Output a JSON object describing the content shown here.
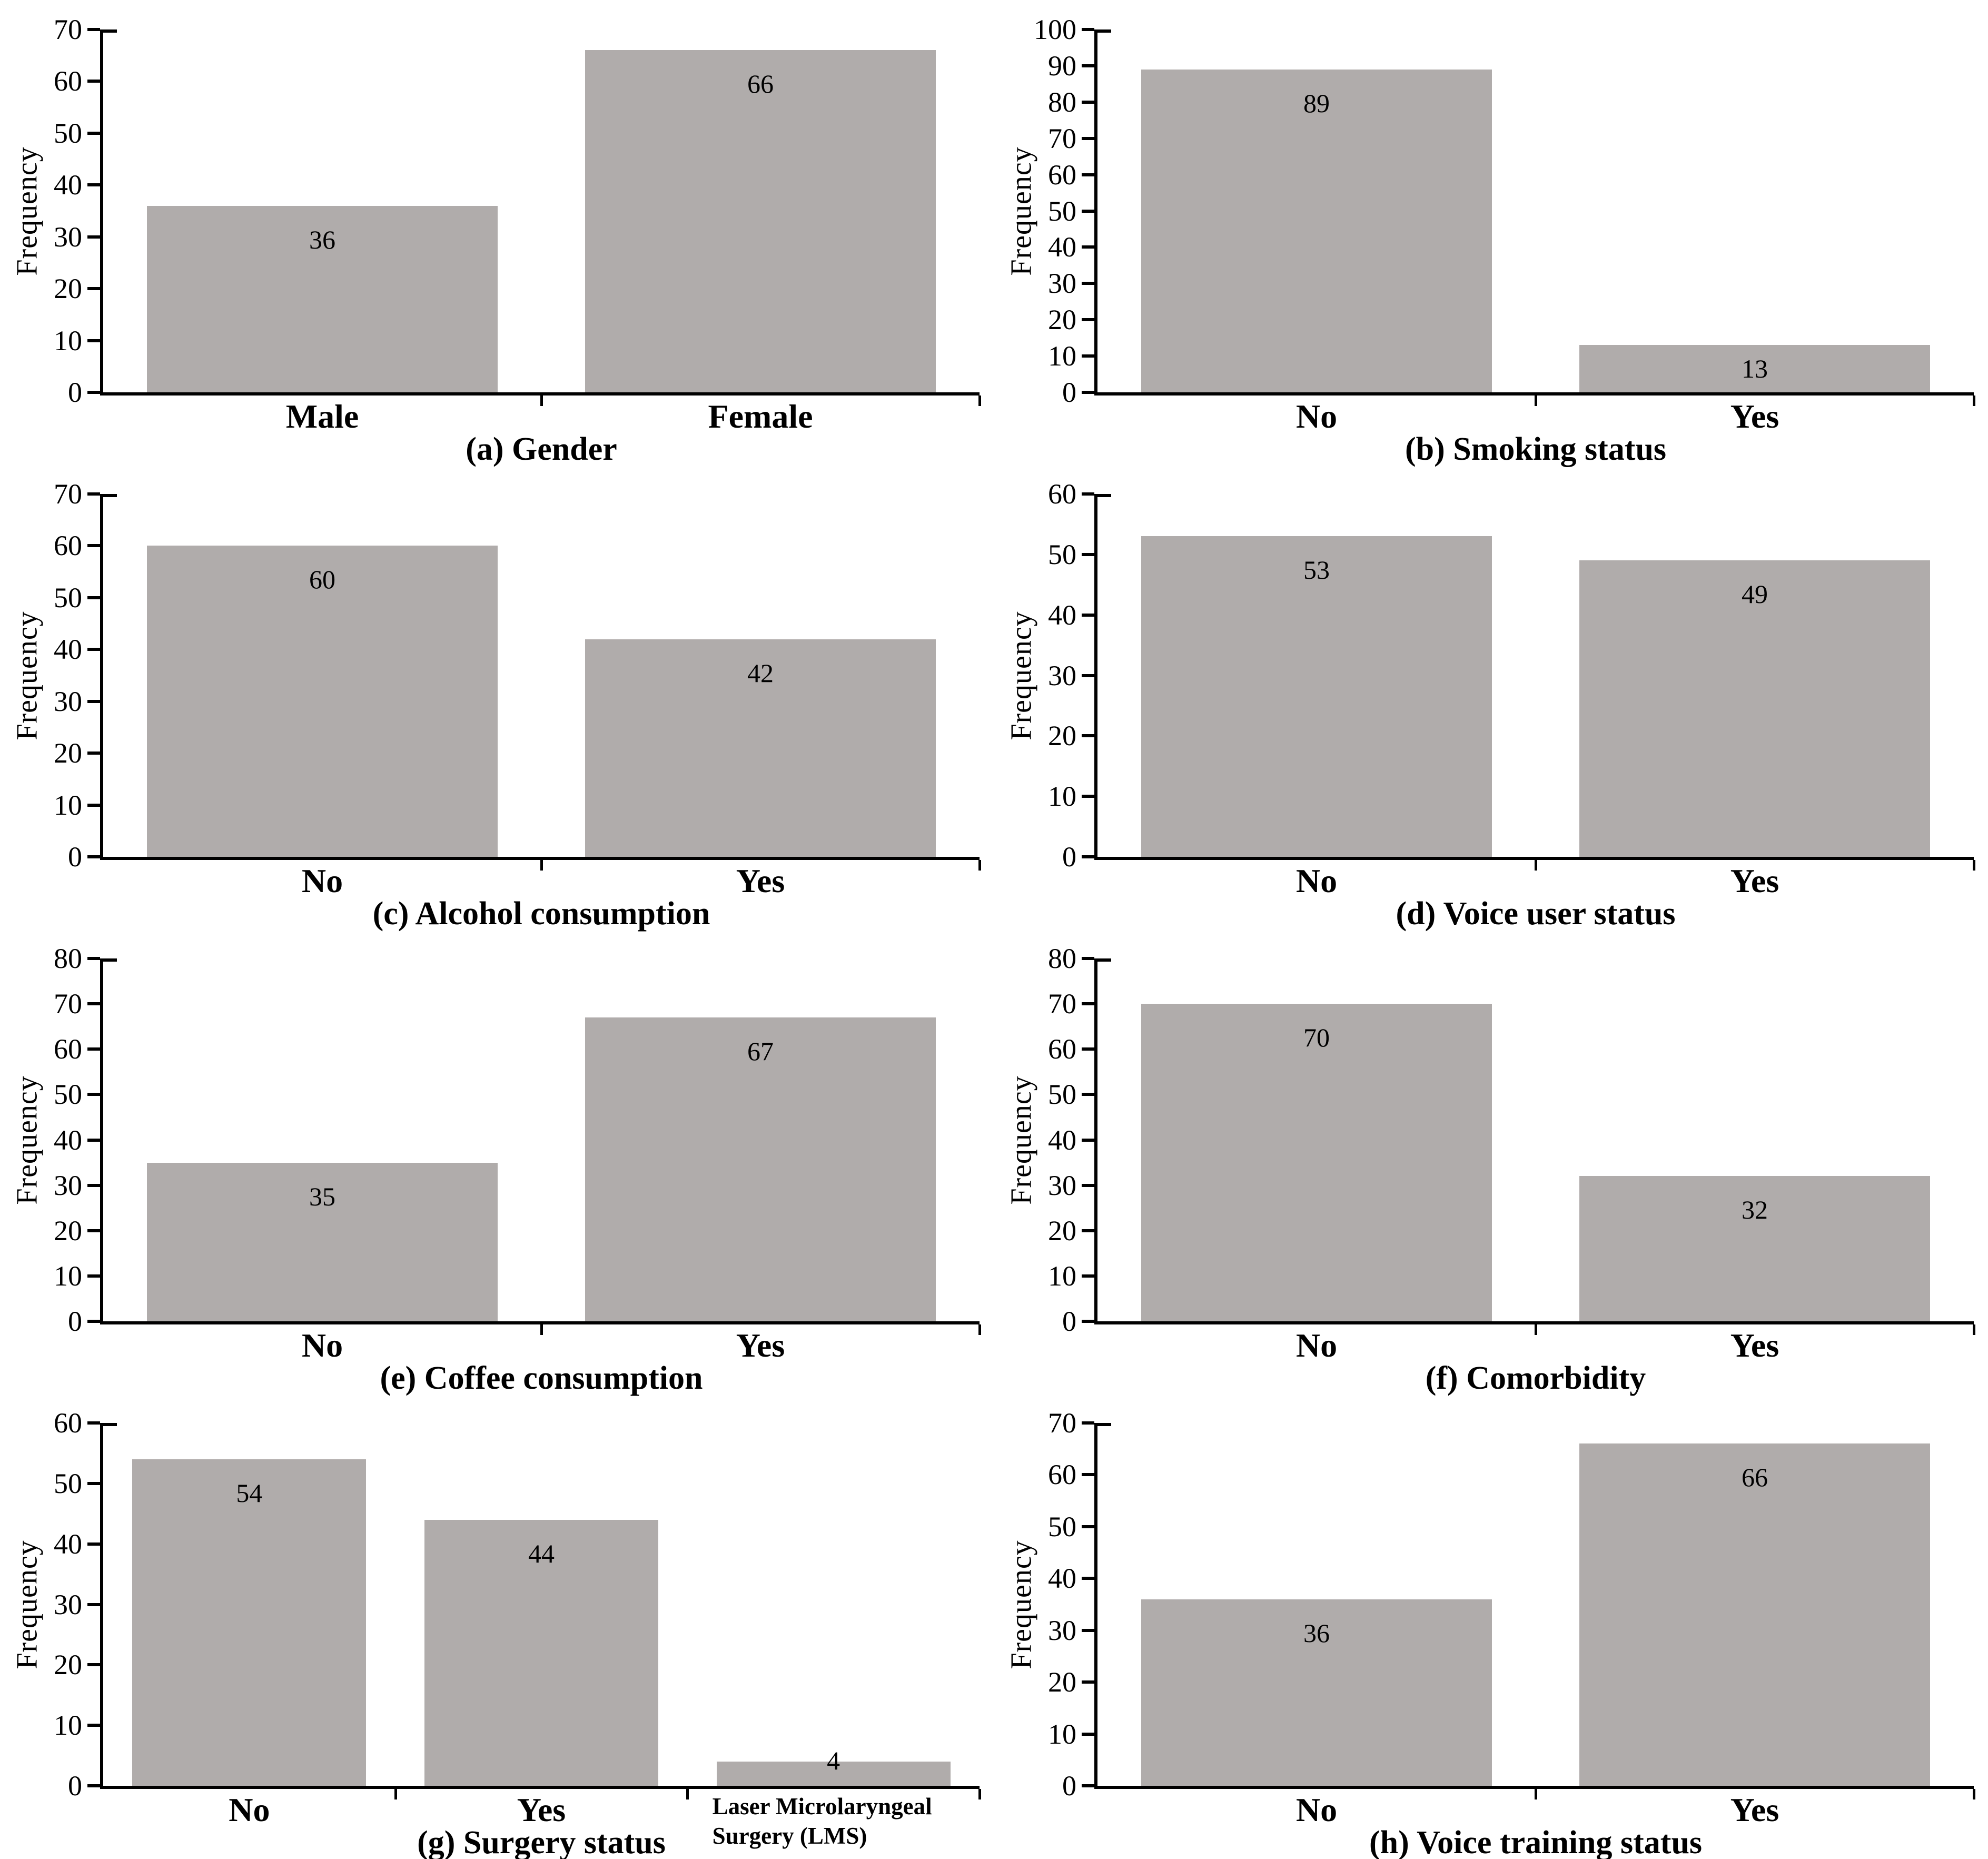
{
  "style": {
    "bar_color": "#b0acab",
    "axis_color": "#000000",
    "text_color": "#000000",
    "background": "#ffffff"
  },
  "chart_data": [
    {
      "id": "a",
      "type": "bar",
      "title": "(a) Gender",
      "ylabel": "Frequency",
      "categories": [
        "Male",
        "Female"
      ],
      "values": [
        36,
        66
      ],
      "ylim": [
        0,
        70
      ],
      "ytick_step": 10,
      "grid": false,
      "value_labels": true
    },
    {
      "id": "b",
      "type": "bar",
      "title": "(b) Smoking status",
      "ylabel": "Frequency",
      "categories": [
        "No",
        "Yes"
      ],
      "values": [
        89,
        13
      ],
      "ylim": [
        0,
        100
      ],
      "ytick_step": 10,
      "grid": false,
      "value_labels": true
    },
    {
      "id": "c",
      "type": "bar",
      "title": "(c) Alcohol consumption",
      "ylabel": "Frequency",
      "categories": [
        "No",
        "Yes"
      ],
      "values": [
        60,
        42
      ],
      "ylim": [
        0,
        70
      ],
      "ytick_step": 10,
      "grid": false,
      "value_labels": true
    },
    {
      "id": "d",
      "type": "bar",
      "title": "(d) Voice user status",
      "ylabel": "Frequency",
      "categories": [
        "No",
        "Yes"
      ],
      "values": [
        53,
        49
      ],
      "ylim": [
        0,
        60
      ],
      "ytick_step": 10,
      "grid": false,
      "value_labels": true
    },
    {
      "id": "e",
      "type": "bar",
      "title": "(e) Coffee consumption",
      "ylabel": "Frequency",
      "categories": [
        "No",
        "Yes"
      ],
      "values": [
        35,
        67
      ],
      "ylim": [
        0,
        80
      ],
      "ytick_step": 10,
      "grid": false,
      "value_labels": true
    },
    {
      "id": "f",
      "type": "bar",
      "title": "(f) Comorbidity",
      "ylabel": "Frequency",
      "categories": [
        "No",
        "Yes"
      ],
      "values": [
        70,
        32
      ],
      "ylim": [
        0,
        80
      ],
      "ytick_step": 10,
      "grid": false,
      "value_labels": true
    },
    {
      "id": "g",
      "type": "bar",
      "title": "(g) Surgery status",
      "ylabel": "Frequency",
      "categories": [
        "No",
        "Yes",
        "Laser Microlaryngeal Surgery (LMS)"
      ],
      "values": [
        54,
        44,
        4
      ],
      "ylim": [
        0,
        60
      ],
      "ytick_step": 10,
      "grid": false,
      "value_labels": true
    },
    {
      "id": "h",
      "type": "bar",
      "title": "(h) Voice training status",
      "ylabel": "Frequency",
      "categories": [
        "No",
        "Yes"
      ],
      "values": [
        36,
        66
      ],
      "ylim": [
        0,
        70
      ],
      "ytick_step": 10,
      "grid": false,
      "value_labels": true
    }
  ]
}
